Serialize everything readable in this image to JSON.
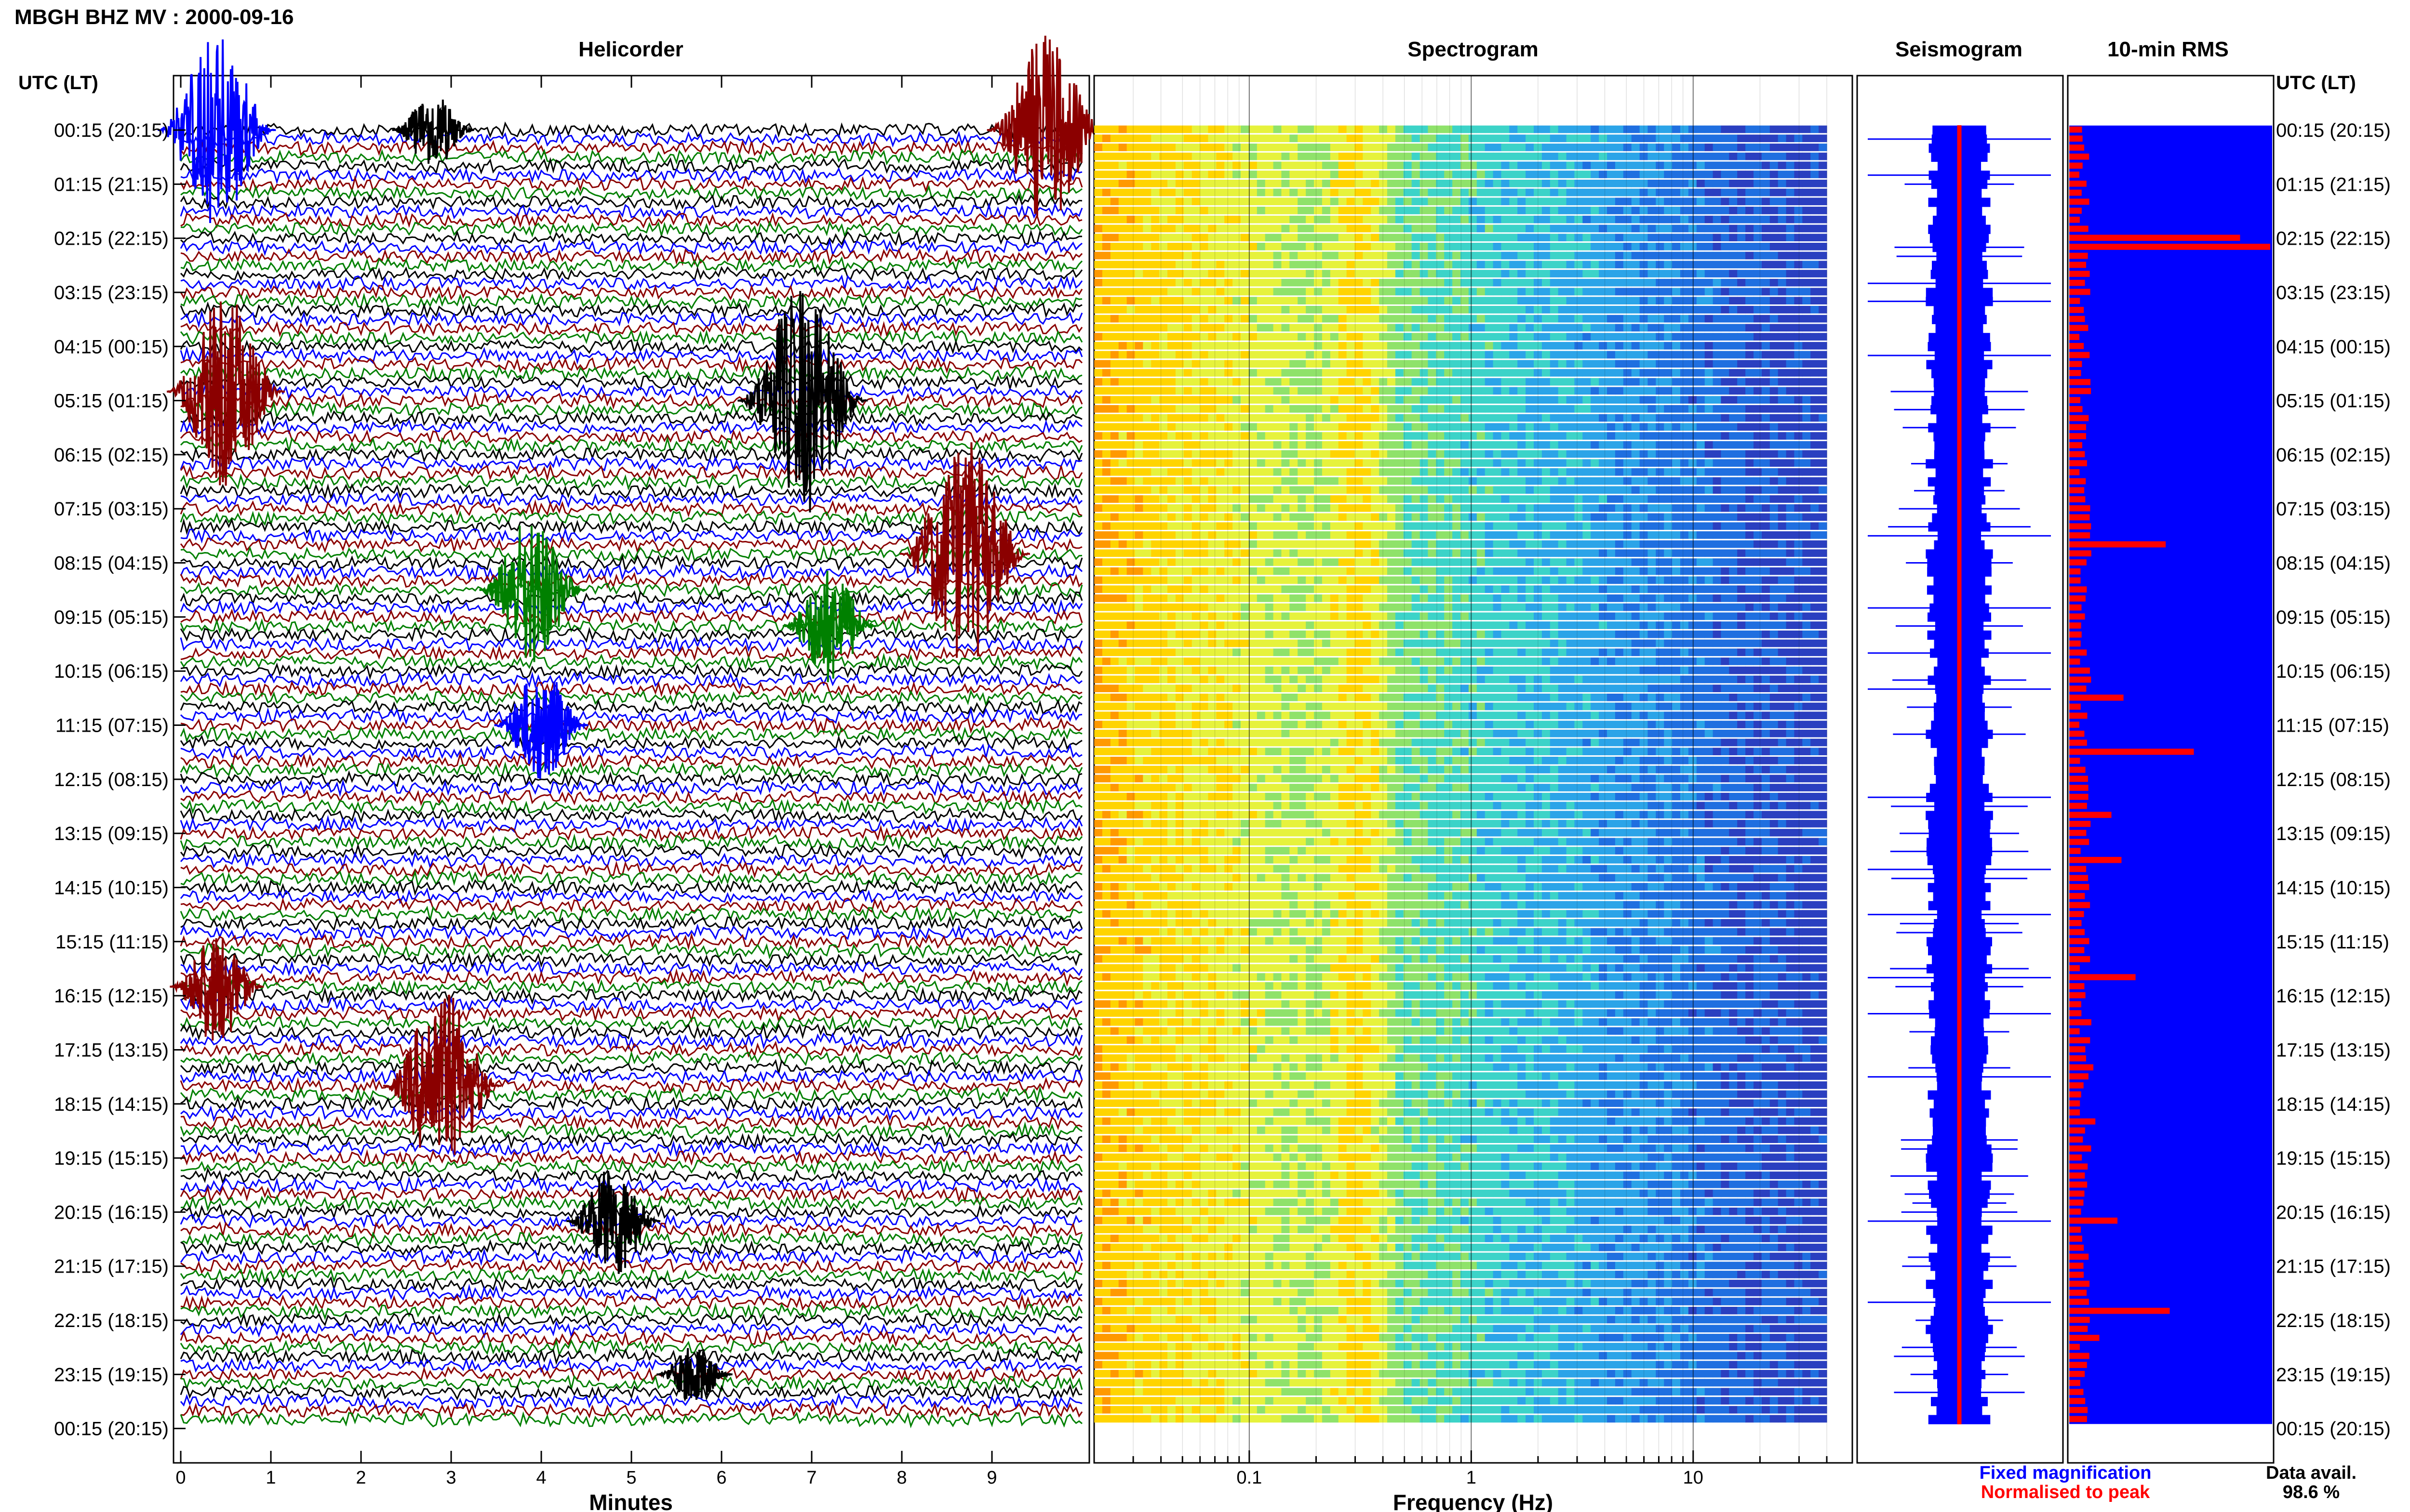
{
  "header": {
    "title": "MBGH BHZ MV : 2000-09-16"
  },
  "panels": {
    "helicorder_title": "Helicorder",
    "spectrogram_title": "Spectrogram",
    "seismogram_title": "Seismogram",
    "rms_title": "10-min RMS"
  },
  "left_axis": {
    "header": "UTC (LT)",
    "labels": [
      "00:15 (20:15)",
      "01:15 (21:15)",
      "02:15 (22:15)",
      "03:15 (23:15)",
      "04:15 (00:15)",
      "05:15 (01:15)",
      "06:15 (02:15)",
      "07:15 (03:15)",
      "08:15 (04:15)",
      "09:15 (05:15)",
      "10:15 (06:15)",
      "11:15 (07:15)",
      "12:15 (08:15)",
      "13:15 (09:15)",
      "14:15 (10:15)",
      "15:15 (11:15)",
      "16:15 (12:15)",
      "17:15 (13:15)",
      "18:15 (14:15)",
      "19:15 (15:15)",
      "20:15 (16:15)",
      "21:15 (17:15)",
      "22:15 (18:15)",
      "23:15 (19:15)",
      "00:15 (20:15)"
    ]
  },
  "right_axis": {
    "header": "UTC (LT)"
  },
  "footer": {
    "fixed_label": "Fixed magnification",
    "normalised_label": "Normalised to peak",
    "avail_label": "Data avail.",
    "avail_value": "98.6 %"
  },
  "colors": {
    "trace_cycle": [
      "#000000",
      "#0000ff",
      "#8b0000",
      "#008000"
    ],
    "fixed_magnification": "#0000ff",
    "normalised_to_peak": "#ff0000",
    "spectrogram_palette": [
      "#ff9900",
      "#ffd400",
      "#e6f23c",
      "#8fe26a",
      "#3cd3c8",
      "#2ba4e8",
      "#1f6fe0",
      "#2a3fc0"
    ]
  },
  "chart_data": [
    {
      "type": "line",
      "panel": "helicorder",
      "title": "Helicorder",
      "xlabel": "Minutes",
      "ylabel": "",
      "x_ticks": [
        0,
        1,
        2,
        3,
        4,
        5,
        6,
        7,
        8,
        9
      ],
      "xlim": [
        0,
        10
      ],
      "rows": 144,
      "row_minutes": 10,
      "events": [
        {
          "row": 0,
          "minute": 0.4,
          "amplitude": 5,
          "color": "#0000ff"
        },
        {
          "row": 0,
          "minute": 9.6,
          "amplitude": 5,
          "color": "#8b0000"
        },
        {
          "row": 0,
          "minute": 2.8,
          "amplitude": 2,
          "color": "#000000"
        },
        {
          "row": 29,
          "minute": 0.5,
          "amplitude": 5,
          "color": "#8b0000"
        },
        {
          "row": 30,
          "minute": 6.9,
          "amplitude": 6,
          "color": "#000000"
        },
        {
          "row": 47,
          "minute": 8.7,
          "amplitude": 6,
          "color": "#8b0000"
        },
        {
          "row": 51,
          "minute": 3.9,
          "amplitude": 4,
          "color": "#008000"
        },
        {
          "row": 55,
          "minute": 7.2,
          "amplitude": 3,
          "color": "#008000"
        },
        {
          "row": 66,
          "minute": 4.0,
          "amplitude": 3,
          "color": "#0000ff"
        },
        {
          "row": 95,
          "minute": 0.4,
          "amplitude": 3,
          "color": "#8b0000"
        },
        {
          "row": 106,
          "minute": 2.9,
          "amplitude": 5,
          "color": "#8b0000"
        },
        {
          "row": 121,
          "minute": 4.8,
          "amplitude": 3,
          "color": "#000000"
        },
        {
          "row": 138,
          "minute": 5.7,
          "amplitude": 1.5,
          "color": "#000000"
        }
      ]
    },
    {
      "type": "heatmap",
      "panel": "spectrogram",
      "title": "Spectrogram",
      "xlabel": "Frequency (Hz)",
      "ylabel": "",
      "x_scale": "log",
      "xlim": [
        0.02,
        40
      ],
      "x_ticks": [
        0.1,
        1,
        10
      ],
      "x_tick_labels": [
        "0.1",
        "1",
        "10"
      ],
      "dominant_peak_hz": 0.3
    },
    {
      "type": "line",
      "panel": "seismogram",
      "title": "Seismogram",
      "xlabel": "",
      "ylabel": "",
      "spike_rows": [
        1,
        5,
        17,
        19,
        25,
        45,
        53,
        58,
        62,
        74,
        82,
        87,
        94,
        98,
        105,
        121,
        130
      ]
    },
    {
      "type": "bar",
      "panel": "rms",
      "title": "10-min RMS",
      "xlabel": "",
      "ylabel": "",
      "rows": 144,
      "peaks": [
        {
          "row": 12,
          "value": 0.85
        },
        {
          "row": 13,
          "value": 1.0
        },
        {
          "row": 46,
          "value": 0.48
        },
        {
          "row": 63,
          "value": 0.27
        },
        {
          "row": 69,
          "value": 0.62
        },
        {
          "row": 76,
          "value": 0.21
        },
        {
          "row": 81,
          "value": 0.26
        },
        {
          "row": 94,
          "value": 0.33
        },
        {
          "row": 104,
          "value": 0.12
        },
        {
          "row": 110,
          "value": 0.13
        },
        {
          "row": 121,
          "value": 0.24
        },
        {
          "row": 131,
          "value": 0.5
        },
        {
          "row": 134,
          "value": 0.15
        }
      ]
    }
  ]
}
